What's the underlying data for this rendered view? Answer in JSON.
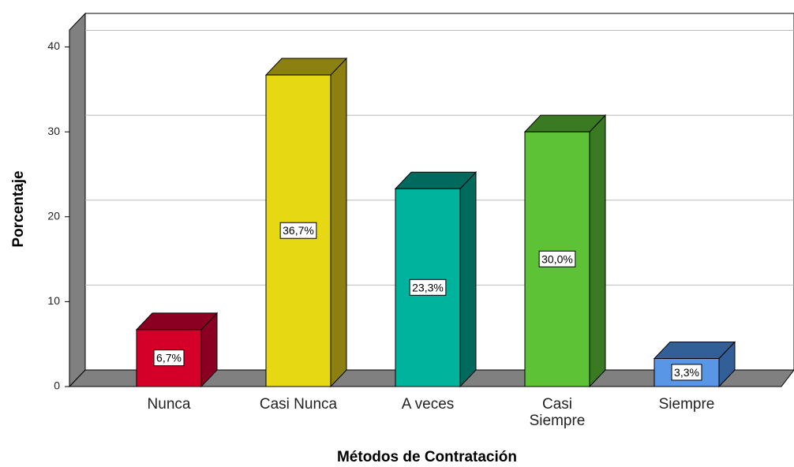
{
  "chart_data": {
    "type": "bar3d",
    "x_label": "Métodos de Contratación",
    "y_label": "Porcentaje",
    "categories": [
      "Nunca",
      "Casi Nunca",
      "A veces",
      "Casi Siempre",
      "Siempre"
    ],
    "values": [
      6.7,
      36.7,
      23.3,
      30.0,
      3.3
    ],
    "value_labels": [
      "6,7%",
      "36,7%",
      "23,3%",
      "30,0%",
      "3,3%"
    ],
    "colors": [
      "#d5002a",
      "#e6d812",
      "#00b39c",
      "#5ec237",
      "#5a96e6"
    ],
    "side_colors": [
      "#8b0022",
      "#8b8010",
      "#006a5e",
      "#3a7a22",
      "#335f99"
    ],
    "ylim": [
      0,
      42
    ],
    "yticks": [
      0,
      10,
      20,
      30,
      40
    ],
    "grid": true
  }
}
